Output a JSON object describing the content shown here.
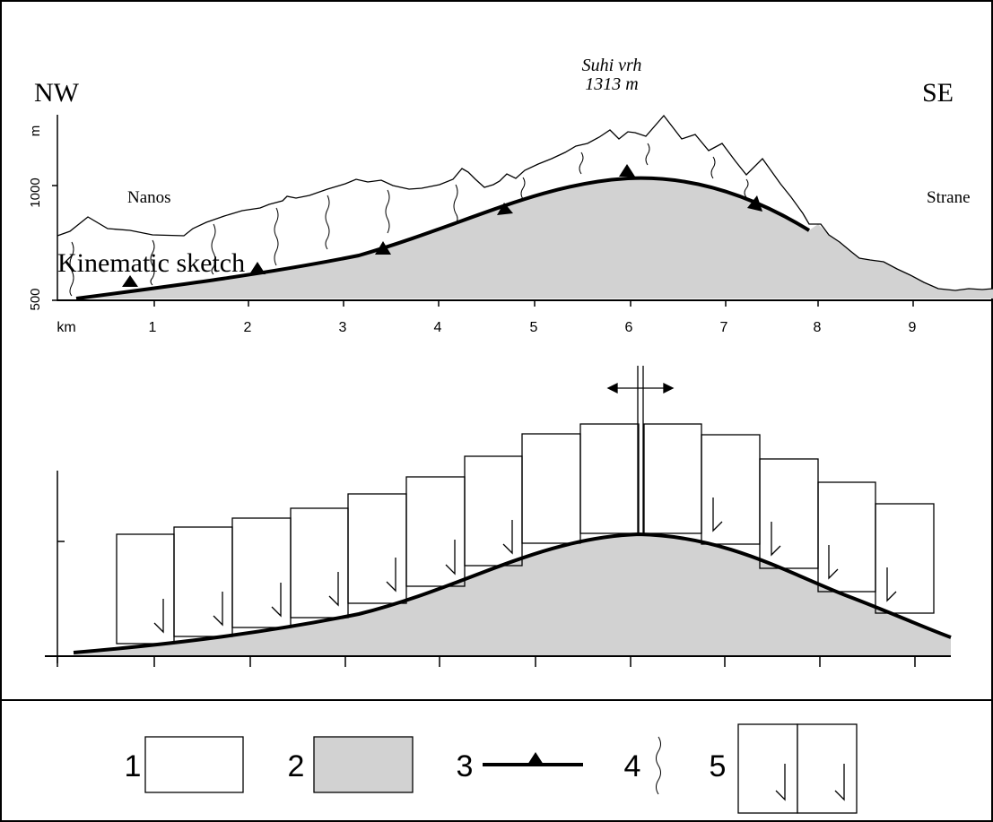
{
  "profile": {
    "left_direction": "NW",
    "right_direction": "SE",
    "peak_name": "Suhi vrh",
    "peak_elevation": "1313 m",
    "place_left": "Nanos",
    "place_right": "Strane",
    "y_axis_unit": "m",
    "y_ticks": [
      "500",
      "1000"
    ],
    "x_axis_unit": "km",
    "x_ticks": [
      "1",
      "2",
      "3",
      "4",
      "5",
      "6",
      "7",
      "8",
      "9"
    ]
  },
  "sketch": {
    "title": "Kinematic sketch"
  },
  "legend": {
    "items": [
      {
        "number": "1",
        "symbol": "white-box"
      },
      {
        "number": "2",
        "symbol": "gray-box"
      },
      {
        "number": "3",
        "symbol": "thrust-line"
      },
      {
        "number": "4",
        "symbol": "wavy-line"
      },
      {
        "number": "5",
        "symbol": "normal-fault-blocks"
      }
    ]
  },
  "colors": {
    "fill_gray": "#d2d2d2",
    "line": "#000000",
    "background": "#ffffff"
  }
}
